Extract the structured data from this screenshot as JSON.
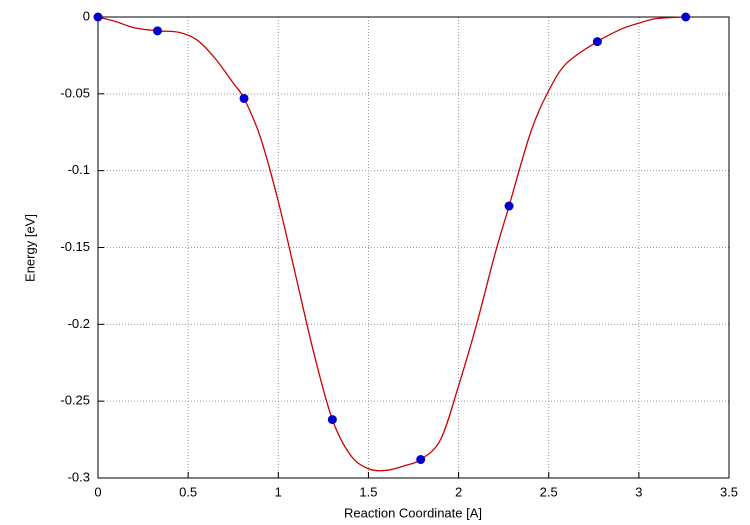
{
  "chart_data": {
    "type": "line",
    "xlabel": "Reaction Coordinate [A]",
    "ylabel": "Energy [eV]",
    "xlim": [
      0,
      3.5
    ],
    "xticks": [
      0,
      0.5,
      1,
      1.5,
      2,
      2.5,
      3,
      3.5
    ],
    "ylim": [
      -0.3,
      0
    ],
    "yticks": [
      0,
      -0.05,
      -0.1,
      -0.15,
      -0.2,
      -0.25,
      -0.3
    ],
    "grid": true,
    "series": [
      {
        "color": "#cc0000",
        "style": "line",
        "x": [
          0,
          0.1,
          0.2,
          0.33,
          0.45,
          0.55,
          0.65,
          0.75,
          0.81,
          0.9,
          1.0,
          1.1,
          1.2,
          1.3,
          1.4,
          1.5,
          1.6,
          1.7,
          1.79,
          1.9,
          2.0,
          2.1,
          2.2,
          2.28,
          2.4,
          2.5,
          2.6,
          2.77,
          2.9,
          3.0,
          3.1,
          3.26
        ],
        "values": [
          0,
          -0.003,
          -0.007,
          -0.009,
          -0.01,
          -0.015,
          -0.027,
          -0.043,
          -0.053,
          -0.078,
          -0.12,
          -0.17,
          -0.22,
          -0.262,
          -0.285,
          -0.294,
          -0.295,
          -0.292,
          -0.288,
          -0.275,
          -0.24,
          -0.2,
          -0.155,
          -0.123,
          -0.075,
          -0.048,
          -0.03,
          -0.016,
          -0.008,
          -0.004,
          -0.001,
          0
        ]
      },
      {
        "color": "#0000cc",
        "style": "markers",
        "x": [
          0,
          0.33,
          0.81,
          1.3,
          1.79,
          2.28,
          2.77,
          3.26
        ],
        "values": [
          0,
          -0.009,
          -0.053,
          -0.262,
          -0.288,
          -0.123,
          -0.016,
          0
        ]
      }
    ]
  }
}
